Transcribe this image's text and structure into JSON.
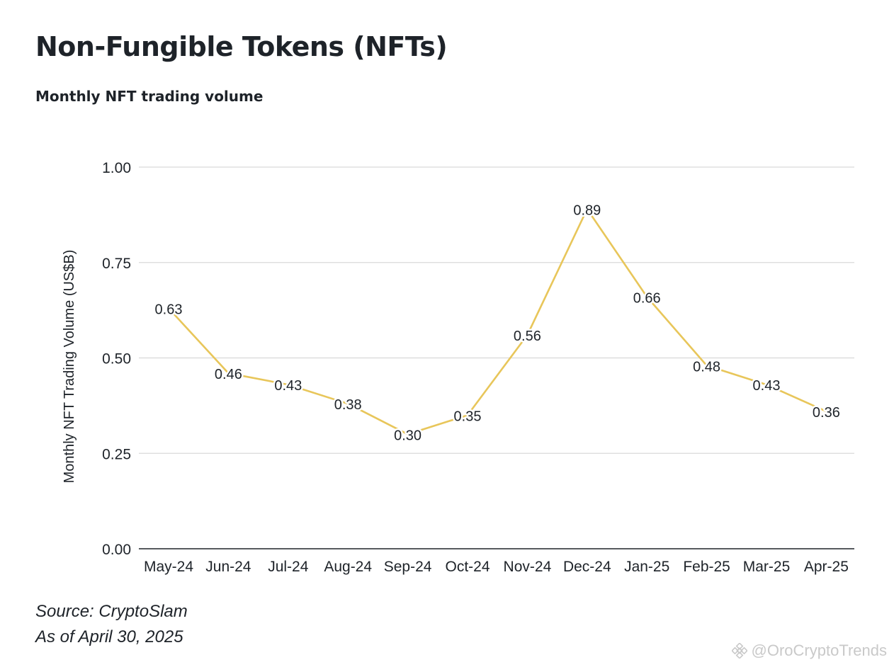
{
  "header": {
    "title": "Non-Fungible Tokens (NFTs)",
    "subtitle": "Monthly NFT trading volume"
  },
  "footer": {
    "source": "Source: CryptoSlam",
    "as_of": "As of April 30, 2025"
  },
  "watermark": {
    "text": "@OroCryptoTrends",
    "icon": "binance-logo-icon"
  },
  "colors": {
    "line": "#e8c65a",
    "grid": "#d9d9d9",
    "axis": "#1e2329",
    "text": "#1e2329"
  },
  "chart_data": {
    "type": "line",
    "categories": [
      "May-24",
      "Jun-24",
      "Jul-24",
      "Aug-24",
      "Sep-24",
      "Oct-24",
      "Nov-24",
      "Dec-24",
      "Jan-25",
      "Feb-25",
      "Mar-25",
      "Apr-25"
    ],
    "values": [
      0.63,
      0.46,
      0.43,
      0.38,
      0.3,
      0.35,
      0.56,
      0.89,
      0.66,
      0.48,
      0.43,
      0.36
    ],
    "data_labels": [
      "0.63",
      "0.46",
      "0.43",
      "0.38",
      "0.30",
      "0.35",
      "0.56",
      "0.89",
      "0.66",
      "0.48",
      "0.43",
      "0.36"
    ],
    "ylabel": "Monthly NFT Trading Volume (US$B)",
    "xlabel": "",
    "ylim": [
      0,
      1
    ],
    "yticks": [
      0,
      0.25,
      0.5,
      0.75,
      1
    ],
    "ytick_labels": [
      "0.00",
      "0.25",
      "0.50",
      "0.75",
      "1.00"
    ],
    "grid": true,
    "legend": "none"
  }
}
